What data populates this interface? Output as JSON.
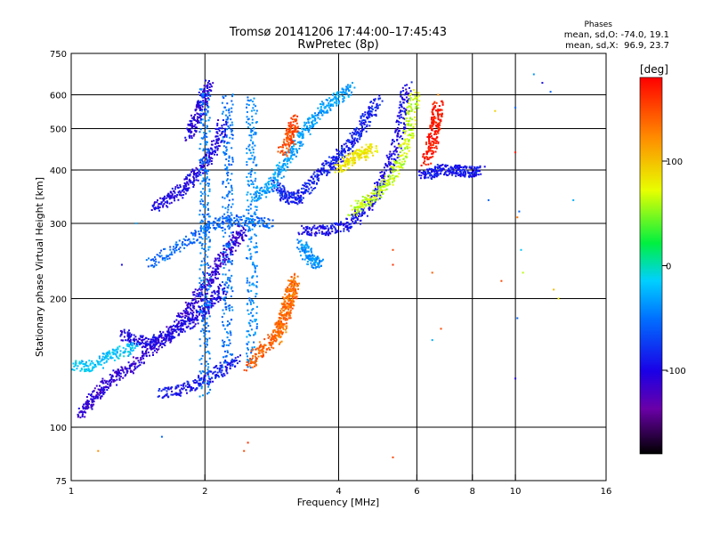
{
  "chart_data": {
    "type": "scatter",
    "title": "Tromsø 20141206 17:44:00–17:45:43",
    "subtitle": "RwPretec (8p)",
    "xlabel": "Frequency [MHz]",
    "ylabel": "Stationary phase Virtual Height [km]",
    "x_scale": "log",
    "y_scale": "log",
    "xlim": [
      1,
      16
    ],
    "ylim": [
      75,
      750
    ],
    "x_ticks": [
      1,
      2,
      4,
      6,
      8,
      10,
      16
    ],
    "x_tick_labels": [
      "1",
      "2",
      "4",
      "6",
      "8",
      "10",
      "16"
    ],
    "x_grid": [
      2,
      4,
      6,
      8,
      10
    ],
    "y_ticks": [
      75,
      100,
      200,
      300,
      400,
      500,
      600,
      750
    ],
    "y_tick_labels": [
      "75",
      "100",
      "200",
      "300",
      "400",
      "500",
      "600",
      "750"
    ],
    "y_grid": [
      100,
      200,
      300,
      400,
      500,
      600
    ],
    "grid": true,
    "legend": {
      "header": "Phases",
      "line1": "mean, sd,O: -74.0, 19.1",
      "line2": "mean, sd,X:  96.9, 23.7",
      "placement": "top-right"
    },
    "colorbar": {
      "label": "[deg]",
      "range": [
        -180,
        180
      ],
      "ticks": [
        100,
        0,
        -100
      ],
      "tick_labels": [
        "100",
        "0",
        "-100"
      ],
      "colormap": "rainbow"
    },
    "traces": [
      {
        "phase": -115,
        "points": [
          [
            1.05,
            107
          ],
          [
            1.1,
            114
          ],
          [
            1.15,
            120
          ],
          [
            1.2,
            126
          ],
          [
            1.28,
            133
          ],
          [
            1.38,
            140
          ],
          [
            1.5,
            150
          ],
          [
            1.62,
            162
          ],
          [
            1.75,
            176
          ],
          [
            1.85,
            190
          ],
          [
            1.95,
            205
          ],
          [
            2.05,
            222
          ],
          [
            2.15,
            240
          ],
          [
            2.25,
            258
          ],
          [
            2.35,
            275
          ],
          [
            2.45,
            290
          ]
        ]
      },
      {
        "phase": -105,
        "points": [
          [
            1.3,
            165
          ],
          [
            1.38,
            160
          ],
          [
            1.48,
            158
          ],
          [
            1.58,
            160
          ],
          [
            1.68,
            165
          ],
          [
            1.78,
            172
          ],
          [
            1.9,
            180
          ],
          [
            2.0,
            190
          ],
          [
            2.1,
            200
          ],
          [
            2.2,
            212
          ]
        ]
      },
      {
        "phase": -95,
        "points": [
          [
            1.6,
            120
          ],
          [
            1.75,
            122
          ],
          [
            1.9,
            126
          ],
          [
            2.05,
            131
          ],
          [
            2.2,
            137
          ],
          [
            2.35,
            144
          ]
        ]
      },
      {
        "phase": -105,
        "points": [
          [
            1.55,
            330
          ],
          [
            1.65,
            340
          ],
          [
            1.75,
            355
          ],
          [
            1.85,
            375
          ],
          [
            1.95,
            400
          ],
          [
            2.05,
            430
          ],
          [
            2.15,
            470
          ],
          [
            2.2,
            520
          ]
        ]
      },
      {
        "phase": -110,
        "points": [
          [
            1.85,
            480
          ],
          [
            1.9,
            520
          ],
          [
            1.95,
            560
          ],
          [
            2.0,
            600
          ],
          [
            2.05,
            640
          ]
        ]
      },
      {
        "phase": -60,
        "points": [
          [
            1.5,
            240
          ],
          [
            1.7,
            260
          ],
          [
            1.9,
            280
          ],
          [
            2.1,
            300
          ],
          [
            2.3,
            305
          ],
          [
            2.6,
            303
          ],
          [
            2.8,
            300
          ]
        ]
      },
      {
        "phase": -100,
        "points": [
          [
            3.3,
            290
          ],
          [
            3.6,
            288
          ],
          [
            3.9,
            290
          ],
          [
            4.2,
            298
          ],
          [
            4.5,
            315
          ],
          [
            4.8,
            345
          ],
          [
            5.1,
            385
          ],
          [
            5.3,
            430
          ],
          [
            5.5,
            490
          ],
          [
            5.6,
            560
          ],
          [
            5.7,
            630
          ]
        ]
      },
      {
        "phase": 62,
        "points": [
          [
            4.3,
            320
          ],
          [
            4.6,
            335
          ],
          [
            4.9,
            355
          ],
          [
            5.2,
            380
          ],
          [
            5.5,
            420
          ],
          [
            5.7,
            470
          ],
          [
            5.85,
            540
          ],
          [
            5.95,
            610
          ]
        ]
      },
      {
        "phase": -90,
        "points": [
          [
            2.9,
            370
          ],
          [
            3.0,
            350
          ],
          [
            3.15,
            340
          ],
          [
            3.3,
            350
          ],
          [
            3.5,
            375
          ],
          [
            3.7,
            400
          ],
          [
            3.9,
            420
          ],
          [
            4.1,
            440
          ],
          [
            4.3,
            470
          ],
          [
            4.5,
            500
          ],
          [
            4.7,
            540
          ],
          [
            4.9,
            590
          ]
        ]
      },
      {
        "phase": -35,
        "points": [
          [
            2.6,
            345
          ],
          [
            2.75,
            360
          ],
          [
            2.9,
            385
          ],
          [
            3.05,
            420
          ],
          [
            3.2,
            460
          ],
          [
            3.4,
            500
          ],
          [
            3.6,
            540
          ],
          [
            3.8,
            570
          ],
          [
            4.05,
            600
          ],
          [
            4.3,
            630
          ]
        ]
      },
      {
        "phase": -50,
        "points": [
          [
            2.0,
            120
          ],
          [
            2.0,
            160
          ],
          [
            2.0,
            200
          ],
          [
            2.0,
            260
          ],
          [
            2.0,
            320
          ],
          [
            2.0,
            400
          ],
          [
            2.0,
            500
          ],
          [
            2.0,
            620
          ]
        ]
      },
      {
        "phase": -55,
        "points": [
          [
            2.25,
            140
          ],
          [
            2.25,
            180
          ],
          [
            2.25,
            230
          ],
          [
            2.25,
            300
          ],
          [
            2.25,
            380
          ],
          [
            2.25,
            480
          ],
          [
            2.25,
            600
          ]
        ]
      },
      {
        "phase": -45,
        "points": [
          [
            2.55,
            140
          ],
          [
            2.55,
            180
          ],
          [
            2.55,
            230
          ],
          [
            2.55,
            300
          ],
          [
            2.55,
            380
          ],
          [
            2.55,
            480
          ],
          [
            2.55,
            600
          ]
        ]
      },
      {
        "phase": 140,
        "points": [
          [
            2.5,
            138
          ],
          [
            2.65,
            150
          ],
          [
            2.8,
            158
          ],
          [
            2.95,
            170
          ],
          [
            3.05,
            185
          ],
          [
            3.15,
            205
          ],
          [
            3.2,
            225
          ]
        ]
      },
      {
        "phase": 130,
        "points": [
          [
            2.9,
            160
          ],
          [
            3.0,
            175
          ],
          [
            3.05,
            190
          ],
          [
            3.1,
            205
          ],
          [
            3.15,
            220
          ]
        ]
      },
      {
        "phase": 150,
        "points": [
          [
            3.0,
            440
          ],
          [
            3.1,
            470
          ],
          [
            3.15,
            500
          ],
          [
            3.2,
            530
          ]
        ]
      },
      {
        "phase": -40,
        "points": [
          [
            3.3,
            270
          ],
          [
            3.4,
            255
          ],
          [
            3.5,
            245
          ],
          [
            3.6,
            240
          ]
        ]
      },
      {
        "phase": 80,
        "points": [
          [
            4.0,
            400
          ],
          [
            4.2,
            420
          ],
          [
            4.4,
            430
          ],
          [
            4.6,
            440
          ],
          [
            4.8,
            450
          ]
        ]
      },
      {
        "phase": -95,
        "points": [
          [
            6.2,
            390
          ],
          [
            6.5,
            395
          ],
          [
            6.8,
            400
          ],
          [
            7.2,
            400
          ],
          [
            7.5,
            398
          ],
          [
            8.0,
            396
          ],
          [
            8.4,
            398
          ]
        ]
      },
      {
        "phase": 170,
        "points": [
          [
            6.3,
            420
          ],
          [
            6.45,
            450
          ],
          [
            6.55,
            480
          ],
          [
            6.6,
            510
          ],
          [
            6.65,
            540
          ],
          [
            6.7,
            570
          ]
        ]
      },
      {
        "phase": -20,
        "points": [
          [
            1.0,
            140
          ],
          [
            1.1,
            138
          ],
          [
            1.2,
            145
          ],
          [
            1.3,
            150
          ],
          [
            1.4,
            155
          ]
        ]
      }
    ],
    "scattered_points": [
      {
        "x": 10.0,
        "y": 440,
        "phase": 170
      },
      {
        "x": 10.1,
        "y": 310,
        "phase": 130
      },
      {
        "x": 10.2,
        "y": 320,
        "phase": -60
      },
      {
        "x": 10.3,
        "y": 260,
        "phase": -20
      },
      {
        "x": 10.0,
        "y": 130,
        "phase": -110
      },
      {
        "x": 10.1,
        "y": 180,
        "phase": -60
      },
      {
        "x": 10.4,
        "y": 230,
        "phase": 60
      },
      {
        "x": 12.5,
        "y": 200,
        "phase": 80
      },
      {
        "x": 12.2,
        "y": 210,
        "phase": 100
      },
      {
        "x": 11.5,
        "y": 640,
        "phase": -100
      },
      {
        "x": 12.0,
        "y": 610,
        "phase": -60
      },
      {
        "x": 13.5,
        "y": 340,
        "phase": -30
      },
      {
        "x": 11.0,
        "y": 670,
        "phase": -40
      },
      {
        "x": 9.0,
        "y": 550,
        "phase": 90
      },
      {
        "x": 8.7,
        "y": 340,
        "phase": -60
      },
      {
        "x": 9.3,
        "y": 220,
        "phase": 150
      },
      {
        "x": 6.8,
        "y": 170,
        "phase": 150
      },
      {
        "x": 6.5,
        "y": 160,
        "phase": -30
      },
      {
        "x": 5.3,
        "y": 240,
        "phase": 160
      },
      {
        "x": 5.3,
        "y": 260,
        "phase": 150
      },
      {
        "x": 6.5,
        "y": 230,
        "phase": 140
      },
      {
        "x": 5.3,
        "y": 85,
        "phase": 150
      },
      {
        "x": 2.45,
        "y": 88,
        "phase": 150
      },
      {
        "x": 2.5,
        "y": 92,
        "phase": 160
      },
      {
        "x": 1.6,
        "y": 95,
        "phase": -60
      },
      {
        "x": 1.15,
        "y": 88,
        "phase": 120
      },
      {
        "x": 1.3,
        "y": 240,
        "phase": -100
      },
      {
        "x": 1.4,
        "y": 300,
        "phase": -30
      },
      {
        "x": 6.7,
        "y": 600,
        "phase": 120
      },
      {
        "x": 10.0,
        "y": 560,
        "phase": -60
      }
    ]
  }
}
